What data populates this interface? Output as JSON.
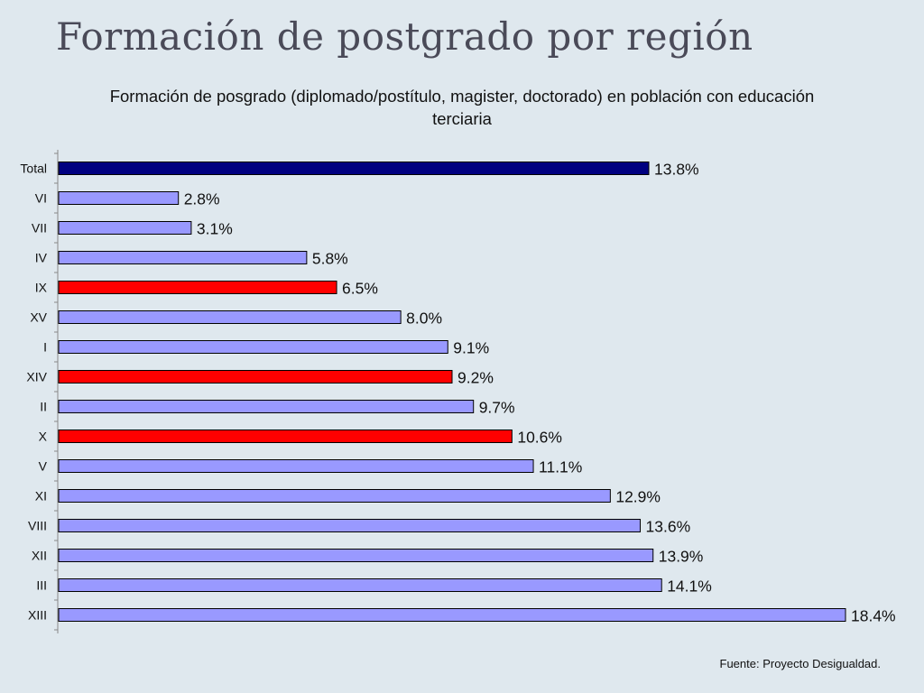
{
  "slide": {
    "title": "Formación de postgrado por región",
    "source": "Fuente: Proyecto Desigualdad."
  },
  "chart_data": {
    "type": "bar",
    "orientation": "horizontal",
    "title": "Formación de posgrado (diplomado/postítulo, magister, doctorado) en población con educación terciaria",
    "xlabel": "",
    "ylabel": "",
    "grid": false,
    "legend": "none",
    "xlim": [
      0,
      18.4
    ],
    "categories": [
      "Total",
      "VI",
      "VII",
      "IV",
      "IX",
      "XV",
      "I",
      "XIV",
      "II",
      "X",
      "V",
      "XI",
      "VIII",
      "XII",
      "III",
      "XIII"
    ],
    "values": [
      13.8,
      2.8,
      3.1,
      5.8,
      6.5,
      8.0,
      9.1,
      9.2,
      9.7,
      10.6,
      11.1,
      12.9,
      13.6,
      13.9,
      14.1,
      18.4
    ],
    "value_labels": [
      "13.8%",
      "2.8%",
      "3.1%",
      "5.8%",
      "6.5%",
      "8.0%",
      "9.1%",
      "9.2%",
      "9.7%",
      "10.6%",
      "11.1%",
      "12.9%",
      "13.6%",
      "13.9%",
      "14.1%",
      "18.4%"
    ],
    "highlight": {
      "total_category": "Total",
      "highlighted_categories": [
        "IX",
        "XIV",
        "X"
      ]
    },
    "colors": {
      "total": "#000080",
      "highlight": "#ff0000",
      "default": "#9999ff",
      "outline": "#000000"
    }
  }
}
